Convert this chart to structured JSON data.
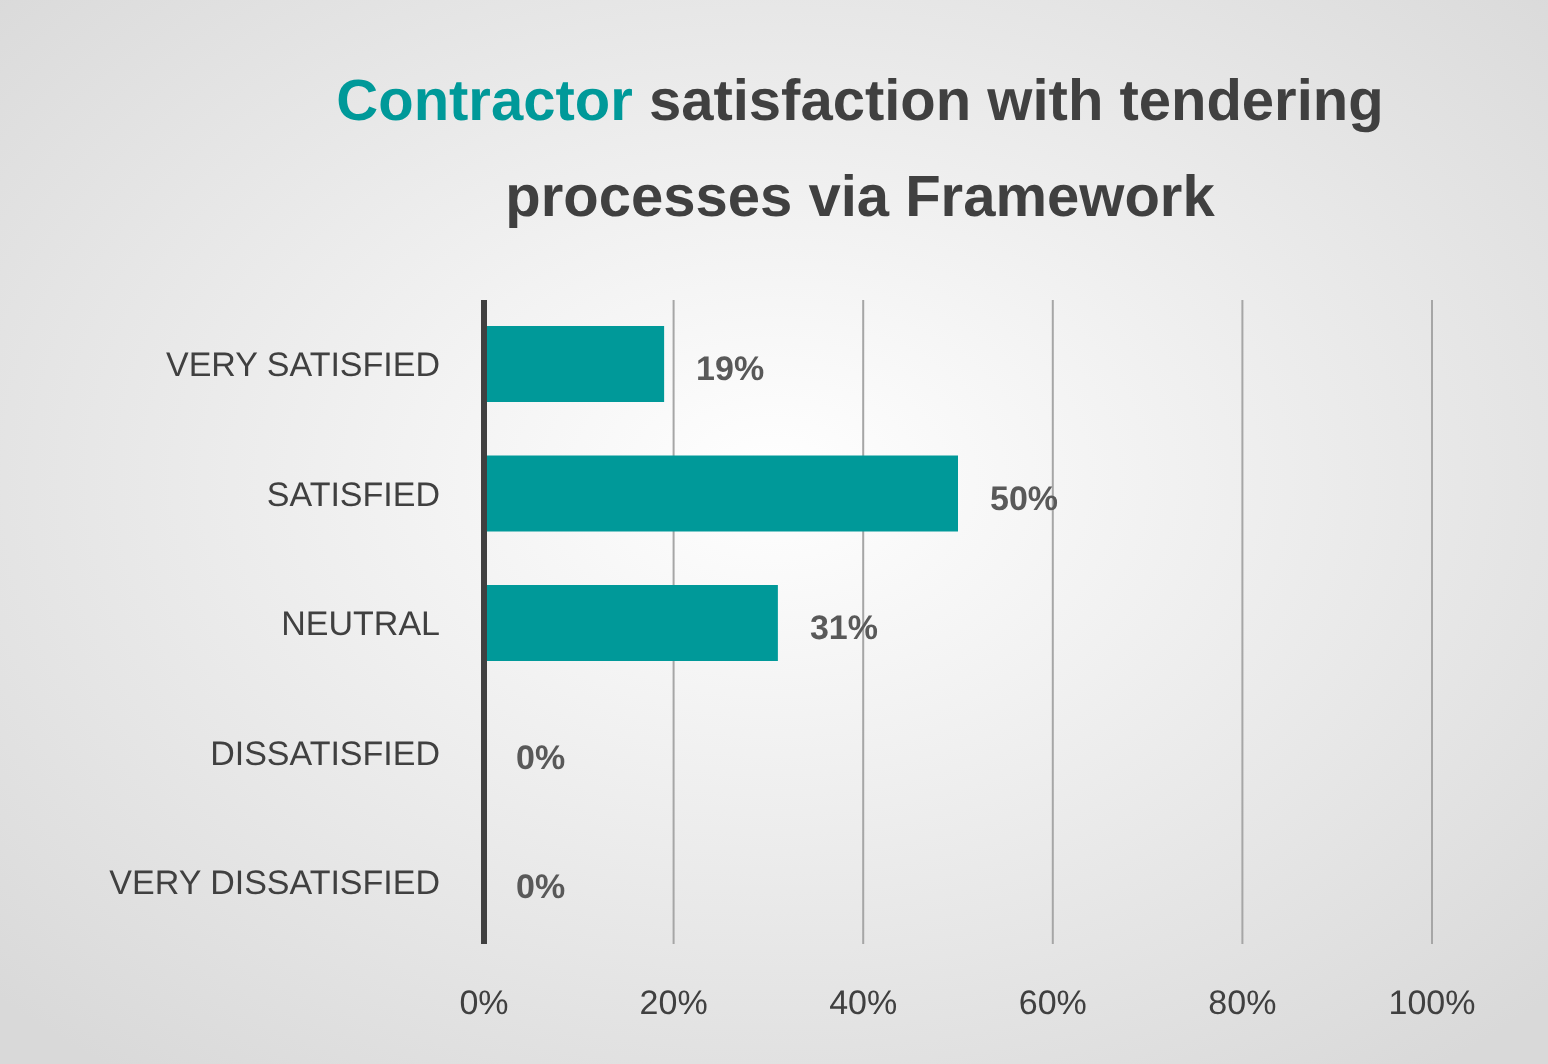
{
  "chart_data": {
    "type": "bar",
    "orientation": "horizontal",
    "title": "Contractor satisfaction with tendering processes via Framework",
    "categories": [
      "VERY SATISFIED",
      "SATISFIED",
      "NEUTRAL",
      "DISSATISFIED",
      "VERY DISSATISFIED"
    ],
    "values": [
      19,
      50,
      31,
      0,
      0
    ],
    "color": "#009999",
    "value_labels": [
      "19%",
      "50%",
      "31%",
      "0%",
      "0%"
    ],
    "xlim": [
      0,
      100
    ],
    "xticks": [
      {
        "value": 0,
        "label": "0%"
      },
      {
        "value": 20,
        "label": "20%"
      },
      {
        "value": 40,
        "label": "40%"
      },
      {
        "value": 60,
        "label": "60%"
      },
      {
        "value": 80,
        "label": "80%"
      },
      {
        "value": 100,
        "label": "100%"
      }
    ],
    "grid": "x"
  }
}
